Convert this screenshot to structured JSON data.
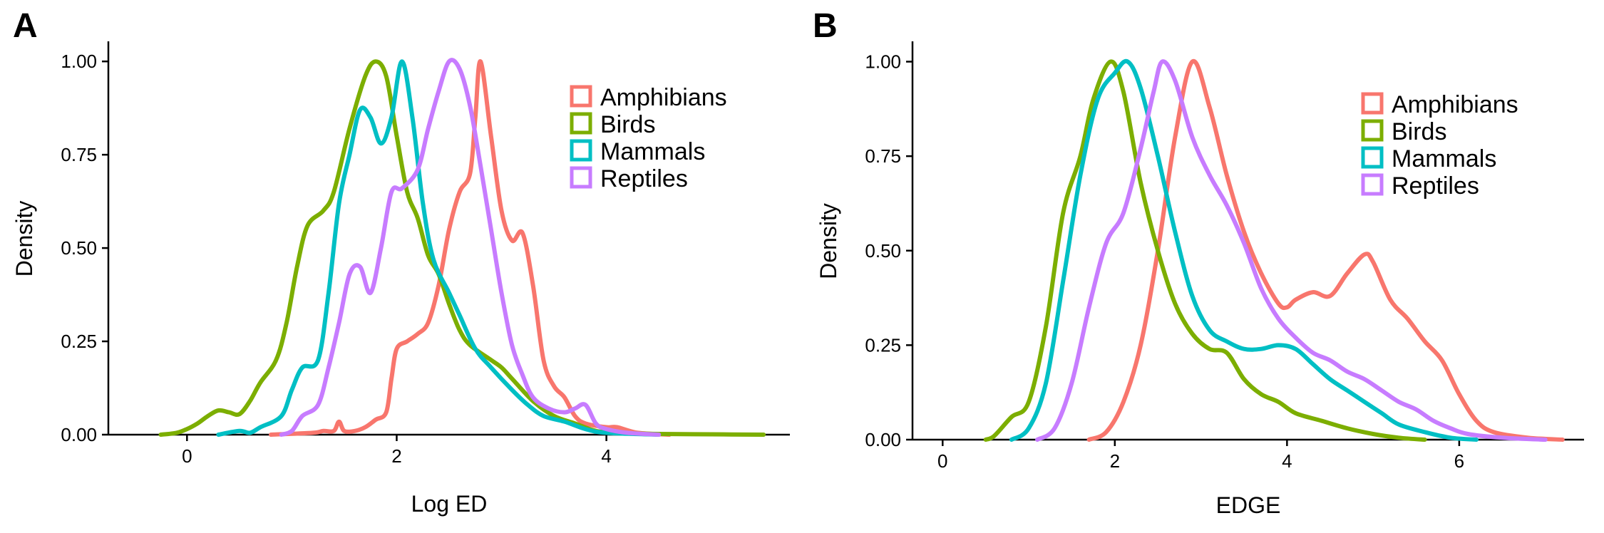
{
  "chart_data": [
    {
      "panel": "A",
      "type": "line",
      "xlabel": "Log ED",
      "ylabel": "Density",
      "xlim": [
        -0.75,
        5.75
      ],
      "ylim": [
        0,
        1.05
      ],
      "xticks": [
        0,
        2,
        4
      ],
      "xtick_labels": [
        "0",
        "2",
        "4"
      ],
      "yticks": [
        0,
        0.25,
        0.5,
        0.75,
        1.0
      ],
      "ytick_labels": [
        "0.00",
        "0.25",
        "0.50",
        "0.75",
        "1.00"
      ],
      "grid": false,
      "legend_position": "top-right",
      "series": [
        {
          "name": "Amphibians",
          "color": "#F8766D",
          "points": [
            [
              0.8,
              0
            ],
            [
              1.2,
              0.005
            ],
            [
              1.3,
              0.01
            ],
            [
              1.4,
              0.01
            ],
            [
              1.45,
              0.035
            ],
            [
              1.5,
              0.01
            ],
            [
              1.6,
              0.01
            ],
            [
              1.7,
              0.02
            ],
            [
              1.8,
              0.04
            ],
            [
              1.9,
              0.06
            ],
            [
              1.95,
              0.15
            ],
            [
              2.0,
              0.23
            ],
            [
              2.1,
              0.25
            ],
            [
              2.2,
              0.27
            ],
            [
              2.3,
              0.3
            ],
            [
              2.4,
              0.4
            ],
            [
              2.5,
              0.55
            ],
            [
              2.6,
              0.65
            ],
            [
              2.7,
              0.7
            ],
            [
              2.75,
              0.85
            ],
            [
              2.8,
              1.0
            ],
            [
              2.9,
              0.8
            ],
            [
              3.0,
              0.6
            ],
            [
              3.1,
              0.52
            ],
            [
              3.2,
              0.54
            ],
            [
              3.3,
              0.4
            ],
            [
              3.4,
              0.2
            ],
            [
              3.5,
              0.13
            ],
            [
              3.6,
              0.1
            ],
            [
              3.7,
              0.05
            ],
            [
              3.8,
              0.03
            ],
            [
              4.0,
              0.02
            ],
            [
              4.1,
              0.02
            ],
            [
              4.3,
              0.005
            ],
            [
              4.6,
              0
            ]
          ]
        },
        {
          "name": "Birds",
          "color": "#7CAE00",
          "points": [
            [
              -0.25,
              0
            ],
            [
              -0.1,
              0.005
            ],
            [
              0.0,
              0.015
            ],
            [
              0.1,
              0.03
            ],
            [
              0.2,
              0.05
            ],
            [
              0.3,
              0.065
            ],
            [
              0.4,
              0.06
            ],
            [
              0.5,
              0.055
            ],
            [
              0.6,
              0.09
            ],
            [
              0.7,
              0.14
            ],
            [
              0.85,
              0.2
            ],
            [
              0.95,
              0.3
            ],
            [
              1.05,
              0.45
            ],
            [
              1.15,
              0.56
            ],
            [
              1.3,
              0.6
            ],
            [
              1.4,
              0.65
            ],
            [
              1.55,
              0.82
            ],
            [
              1.7,
              0.96
            ],
            [
              1.8,
              1.0
            ],
            [
              1.9,
              0.96
            ],
            [
              2.0,
              0.8
            ],
            [
              2.1,
              0.65
            ],
            [
              2.2,
              0.58
            ],
            [
              2.3,
              0.48
            ],
            [
              2.4,
              0.43
            ],
            [
              2.5,
              0.35
            ],
            [
              2.6,
              0.28
            ],
            [
              2.7,
              0.24
            ],
            [
              2.9,
              0.2
            ],
            [
              3.0,
              0.18
            ],
            [
              3.1,
              0.15
            ],
            [
              3.3,
              0.09
            ],
            [
              3.5,
              0.05
            ],
            [
              3.7,
              0.03
            ],
            [
              3.9,
              0.01
            ],
            [
              4.1,
              0.005
            ],
            [
              4.5,
              0.002
            ],
            [
              5.0,
              0.001
            ],
            [
              5.5,
              0
            ]
          ]
        },
        {
          "name": "Mammals",
          "color": "#00BFC4",
          "points": [
            [
              0.3,
              0
            ],
            [
              0.5,
              0.01
            ],
            [
              0.6,
              0.005
            ],
            [
              0.7,
              0.02
            ],
            [
              0.9,
              0.05
            ],
            [
              1.0,
              0.12
            ],
            [
              1.1,
              0.18
            ],
            [
              1.25,
              0.2
            ],
            [
              1.35,
              0.38
            ],
            [
              1.45,
              0.62
            ],
            [
              1.55,
              0.75
            ],
            [
              1.65,
              0.87
            ],
            [
              1.75,
              0.85
            ],
            [
              1.85,
              0.78
            ],
            [
              1.95,
              0.85
            ],
            [
              2.05,
              1.0
            ],
            [
              2.15,
              0.85
            ],
            [
              2.25,
              0.62
            ],
            [
              2.35,
              0.47
            ],
            [
              2.5,
              0.38
            ],
            [
              2.6,
              0.32
            ],
            [
              2.75,
              0.23
            ],
            [
              2.9,
              0.18
            ],
            [
              3.1,
              0.12
            ],
            [
              3.25,
              0.08
            ],
            [
              3.4,
              0.05
            ],
            [
              3.6,
              0.035
            ],
            [
              3.8,
              0.015
            ],
            [
              4.0,
              0.005
            ],
            [
              4.5,
              0
            ]
          ]
        },
        {
          "name": "Reptiles",
          "color": "#C77CFF",
          "points": [
            [
              0.9,
              0
            ],
            [
              1.0,
              0.01
            ],
            [
              1.1,
              0.05
            ],
            [
              1.25,
              0.08
            ],
            [
              1.35,
              0.18
            ],
            [
              1.45,
              0.3
            ],
            [
              1.55,
              0.43
            ],
            [
              1.65,
              0.45
            ],
            [
              1.75,
              0.38
            ],
            [
              1.85,
              0.5
            ],
            [
              1.95,
              0.65
            ],
            [
              2.05,
              0.66
            ],
            [
              2.2,
              0.71
            ],
            [
              2.3,
              0.82
            ],
            [
              2.4,
              0.92
            ],
            [
              2.5,
              1.0
            ],
            [
              2.6,
              0.98
            ],
            [
              2.7,
              0.88
            ],
            [
              2.8,
              0.72
            ],
            [
              2.9,
              0.55
            ],
            [
              3.0,
              0.38
            ],
            [
              3.1,
              0.24
            ],
            [
              3.2,
              0.16
            ],
            [
              3.3,
              0.1
            ],
            [
              3.45,
              0.07
            ],
            [
              3.6,
              0.06
            ],
            [
              3.7,
              0.07
            ],
            [
              3.8,
              0.08
            ],
            [
              3.9,
              0.03
            ],
            [
              4.0,
              0.015
            ],
            [
              4.2,
              0.005
            ],
            [
              4.5,
              0
            ]
          ]
        }
      ]
    },
    {
      "panel": "B",
      "type": "line",
      "xlabel": "EDGE",
      "ylabel": "Density",
      "xlim": [
        -0.35,
        7.45
      ],
      "ylim": [
        0,
        1.05
      ],
      "xticks": [
        0,
        2,
        4,
        6
      ],
      "xtick_labels": [
        "0",
        "2",
        "4",
        "6"
      ],
      "yticks": [
        0,
        0.25,
        0.5,
        0.75,
        1.0
      ],
      "ytick_labels": [
        "0.00",
        "0.25",
        "0.50",
        "0.75",
        "1.00"
      ],
      "grid": false,
      "legend_position": "top-right",
      "series": [
        {
          "name": "Amphibians",
          "color": "#F8766D",
          "points": [
            [
              1.7,
              0
            ],
            [
              1.9,
              0.02
            ],
            [
              2.1,
              0.1
            ],
            [
              2.3,
              0.25
            ],
            [
              2.5,
              0.5
            ],
            [
              2.7,
              0.8
            ],
            [
              2.9,
              1.0
            ],
            [
              3.1,
              0.88
            ],
            [
              3.3,
              0.7
            ],
            [
              3.5,
              0.55
            ],
            [
              3.7,
              0.44
            ],
            [
              3.9,
              0.36
            ],
            [
              4.0,
              0.35
            ],
            [
              4.1,
              0.37
            ],
            [
              4.3,
              0.39
            ],
            [
              4.5,
              0.38
            ],
            [
              4.7,
              0.44
            ],
            [
              4.9,
              0.49
            ],
            [
              5.0,
              0.47
            ],
            [
              5.2,
              0.37
            ],
            [
              5.4,
              0.32
            ],
            [
              5.6,
              0.26
            ],
            [
              5.8,
              0.21
            ],
            [
              6.0,
              0.12
            ],
            [
              6.2,
              0.05
            ],
            [
              6.4,
              0.02
            ],
            [
              6.8,
              0.005
            ],
            [
              7.2,
              0
            ]
          ]
        },
        {
          "name": "Birds",
          "color": "#7CAE00",
          "points": [
            [
              0.5,
              0
            ],
            [
              0.6,
              0.01
            ],
            [
              0.8,
              0.06
            ],
            [
              1.0,
              0.1
            ],
            [
              1.2,
              0.3
            ],
            [
              1.4,
              0.6
            ],
            [
              1.6,
              0.75
            ],
            [
              1.75,
              0.9
            ],
            [
              1.95,
              1.0
            ],
            [
              2.1,
              0.92
            ],
            [
              2.3,
              0.68
            ],
            [
              2.5,
              0.5
            ],
            [
              2.7,
              0.36
            ],
            [
              2.9,
              0.28
            ],
            [
              3.1,
              0.24
            ],
            [
              3.3,
              0.23
            ],
            [
              3.5,
              0.16
            ],
            [
              3.7,
              0.12
            ],
            [
              3.9,
              0.1
            ],
            [
              4.1,
              0.07
            ],
            [
              4.4,
              0.05
            ],
            [
              4.7,
              0.03
            ],
            [
              5.0,
              0.015
            ],
            [
              5.3,
              0.005
            ],
            [
              5.6,
              0
            ]
          ]
        },
        {
          "name": "Mammals",
          "color": "#00BFC4",
          "points": [
            [
              0.8,
              0
            ],
            [
              1.0,
              0.03
            ],
            [
              1.2,
              0.15
            ],
            [
              1.4,
              0.42
            ],
            [
              1.6,
              0.7
            ],
            [
              1.8,
              0.9
            ],
            [
              2.0,
              0.97
            ],
            [
              2.15,
              1.0
            ],
            [
              2.3,
              0.93
            ],
            [
              2.5,
              0.75
            ],
            [
              2.7,
              0.55
            ],
            [
              2.9,
              0.38
            ],
            [
              3.1,
              0.29
            ],
            [
              3.3,
              0.26
            ],
            [
              3.5,
              0.24
            ],
            [
              3.7,
              0.24
            ],
            [
              3.9,
              0.25
            ],
            [
              4.1,
              0.24
            ],
            [
              4.3,
              0.2
            ],
            [
              4.5,
              0.16
            ],
            [
              4.7,
              0.13
            ],
            [
              4.9,
              0.1
            ],
            [
              5.1,
              0.07
            ],
            [
              5.3,
              0.04
            ],
            [
              5.6,
              0.02
            ],
            [
              5.9,
              0.005
            ],
            [
              6.2,
              0
            ]
          ]
        },
        {
          "name": "Reptiles",
          "color": "#C77CFF",
          "points": [
            [
              1.1,
              0
            ],
            [
              1.3,
              0.03
            ],
            [
              1.5,
              0.15
            ],
            [
              1.7,
              0.35
            ],
            [
              1.9,
              0.52
            ],
            [
              2.1,
              0.6
            ],
            [
              2.3,
              0.77
            ],
            [
              2.45,
              0.92
            ],
            [
              2.55,
              1.0
            ],
            [
              2.7,
              0.95
            ],
            [
              2.9,
              0.8
            ],
            [
              3.1,
              0.7
            ],
            [
              3.3,
              0.62
            ],
            [
              3.5,
              0.52
            ],
            [
              3.7,
              0.4
            ],
            [
              3.9,
              0.32
            ],
            [
              4.1,
              0.27
            ],
            [
              4.3,
              0.23
            ],
            [
              4.5,
              0.21
            ],
            [
              4.7,
              0.18
            ],
            [
              4.9,
              0.16
            ],
            [
              5.1,
              0.13
            ],
            [
              5.3,
              0.1
            ],
            [
              5.5,
              0.08
            ],
            [
              5.7,
              0.05
            ],
            [
              5.9,
              0.03
            ],
            [
              6.1,
              0.015
            ],
            [
              6.5,
              0.005
            ],
            [
              7.0,
              0
            ]
          ]
        }
      ]
    }
  ]
}
